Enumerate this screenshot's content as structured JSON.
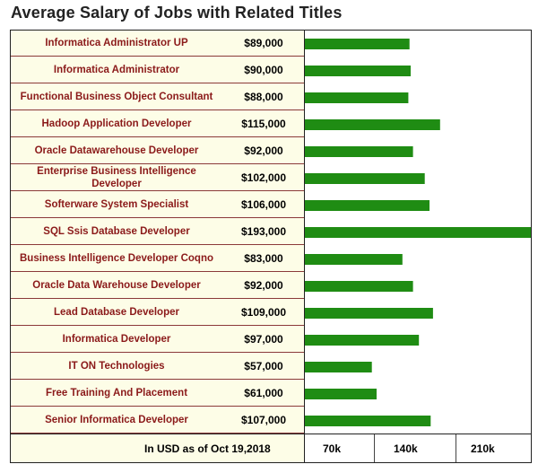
{
  "title": "Average Salary of Jobs with Related Titles",
  "footer_note": "In USD as of Oct 19,2018",
  "colors": {
    "bar": "#1f8c13",
    "label_text": "#8b1a1a",
    "table_bg": "#fdfde7"
  },
  "chart_data": {
    "type": "bar",
    "orientation": "horizontal",
    "title": "Average Salary of Jobs with Related Titles",
    "categories": [
      "Informatica Administrator UP",
      "Informatica Administrator",
      "Functional Business Object Consultant",
      "Hadoop Application Developer",
      "Oracle Datawarehouse Developer",
      "Enterprise Business Intelligence Developer",
      "Softerware System Specialist",
      "SQL Ssis Database Developer",
      "Business Intelligence Developer Coqno",
      "Oracle Data Warehouse Developer",
      "Lead Database Developer",
      "Informatica Developer",
      "IT ON Technologies",
      "Free Training And Placement",
      "Senior Informatica Developer"
    ],
    "values": [
      89000,
      90000,
      88000,
      115000,
      92000,
      102000,
      106000,
      193000,
      83000,
      92000,
      109000,
      97000,
      57000,
      61000,
      107000
    ],
    "value_labels": [
      "$89,000",
      "$90,000",
      "$88,000",
      "$115,000",
      "$92,000",
      "$102,000",
      "$106,000",
      "$193,000",
      "$83,000",
      "$92,000",
      "$109,000",
      "$97,000",
      "$57,000",
      "$61,000",
      "$107,000"
    ],
    "xticks": [
      "70k",
      "140k",
      "210k"
    ],
    "xlim": [
      0,
      193000
    ],
    "grid": false
  }
}
